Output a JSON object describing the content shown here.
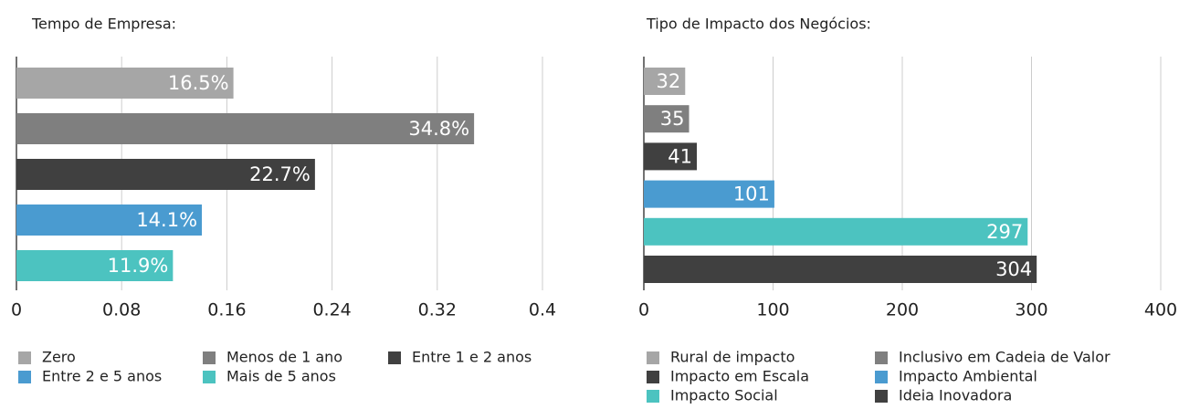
{
  "chart_data": [
    {
      "type": "bar",
      "orientation": "horizontal",
      "title": "Tempo de Empresa:",
      "categories": [
        "Zero",
        "Menos de 1 ano",
        "Entre 1 e 2 anos",
        "Entre 2 e 5 anos",
        "Mais de 5 anos"
      ],
      "values": [
        0.165,
        0.348,
        0.227,
        0.141,
        0.119
      ],
      "value_labels": [
        "16.5%",
        "34.8%",
        "22.7%",
        "14.1%",
        "11.9%"
      ],
      "colors": [
        "#a6a6a6",
        "#7f7f7f",
        "#404040",
        "#4a9bd0",
        "#4cc3c0"
      ],
      "xlim": [
        0,
        0.4
      ],
      "xticks": [
        0,
        0.08,
        0.16,
        0.24,
        0.32,
        0.4
      ],
      "grid": true
    },
    {
      "type": "bar",
      "orientation": "horizontal",
      "title": "Tipo de Impacto dos Negócios:",
      "categories": [
        "Rural de impacto",
        "Inclusivo em Cadeia de Valor",
        "Impacto em Escala",
        "Impacto Ambiental",
        "Impacto Social",
        "Ideia Inovadora"
      ],
      "values": [
        32,
        35,
        41,
        101,
        297,
        304
      ],
      "colors": [
        "#a6a6a6",
        "#7f7f7f",
        "#404040",
        "#4a9bd0",
        "#4cc3c0",
        "#404040"
      ],
      "xlim": [
        0,
        400
      ],
      "xticks": [
        0,
        100,
        200,
        300,
        400
      ],
      "grid": true
    }
  ]
}
